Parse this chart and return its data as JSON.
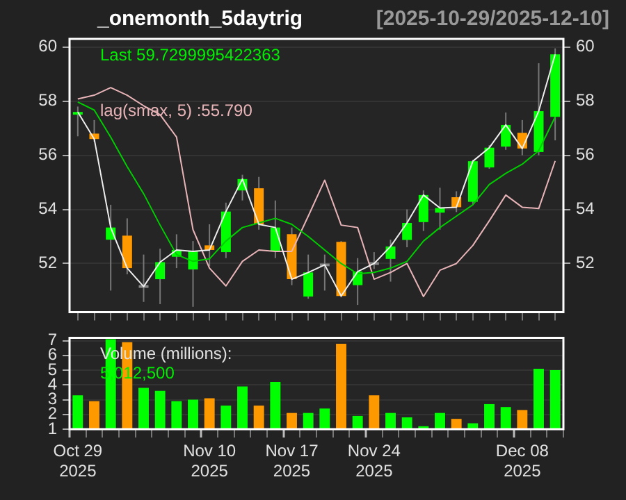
{
  "chart_data": [
    {
      "type": "candlestick",
      "title": "_onemonth_5daytrig",
      "subtitle": "[2025-10-29/2025-12-10]",
      "ohlc": [
        [
          57.5,
          57.8,
          56.7,
          57.6
        ],
        [
          56.8,
          57.3,
          56.5,
          56.6
        ],
        [
          52.88,
          54.17,
          51.0,
          53.33
        ],
        [
          53.03,
          53.67,
          51.6,
          51.83
        ],
        [
          51.1,
          52.33,
          50.58,
          51.2
        ],
        [
          51.42,
          52.55,
          50.5,
          52.05
        ],
        [
          52.25,
          53.08,
          51.83,
          52.5
        ],
        [
          51.78,
          52.83,
          50.4,
          52.45
        ],
        [
          52.67,
          53.45,
          51.9,
          52.5
        ],
        [
          52.42,
          54.25,
          52.2,
          53.92
        ],
        [
          54.7,
          55.28,
          54.33,
          55.12
        ],
        [
          54.78,
          55.2,
          53.25,
          53.45
        ],
        [
          52.45,
          54.33,
          52.2,
          53.33
        ],
        [
          53.08,
          53.33,
          51.2,
          51.42
        ],
        [
          50.78,
          52.33,
          50.7,
          51.67
        ],
        [
          51.9,
          52.33,
          51.0,
          52.0
        ],
        [
          52.8,
          52.83,
          50.75,
          50.8
        ],
        [
          51.2,
          52.2,
          50.47,
          51.7
        ],
        [
          51.95,
          52.42,
          51.8,
          52.05
        ],
        [
          52.17,
          52.88,
          51.33,
          52.63
        ],
        [
          52.87,
          54.0,
          52.6,
          53.5
        ],
        [
          53.53,
          54.7,
          53.2,
          54.53
        ],
        [
          53.88,
          54.8,
          53.25,
          54.05
        ],
        [
          54.45,
          54.67,
          53.9,
          54.08
        ],
        [
          54.28,
          55.83,
          54.2,
          55.78
        ],
        [
          55.55,
          56.37,
          55.5,
          56.28
        ],
        [
          56.32,
          57.58,
          56.2,
          57.12
        ],
        [
          56.83,
          57.3,
          56.0,
          56.25
        ],
        [
          56.12,
          59.4,
          56.0,
          57.63
        ],
        [
          57.42,
          59.95,
          56.55,
          59.73
        ]
      ],
      "colors": [
        "#00ff00",
        "#ff9900",
        "#00ff00",
        "#ff9900",
        "#888888",
        "#00ff00",
        "#00ff00",
        "#00ff00",
        "#ff9900",
        "#00ff00",
        "#00ff00",
        "#ff9900",
        "#00ff00",
        "#ff9900",
        "#00ff00",
        "#888888",
        "#ff9900",
        "#00ff00",
        "#888888",
        "#00ff00",
        "#00ff00",
        "#00ff00",
        "#00ff00",
        "#ff9900",
        "#00ff00",
        "#00ff00",
        "#00ff00",
        "#ff9900",
        "#00ff00",
        "#00ff00"
      ],
      "series": [
        {
          "type": "line",
          "color": "#eeeeee",
          "values": [
            57.6,
            56.6,
            53.33,
            51.83,
            51.15,
            52.05,
            52.5,
            52.45,
            52.5,
            53.92,
            55.12,
            53.45,
            53.33,
            51.42,
            51.67,
            51.95,
            50.8,
            51.7,
            52.0,
            52.63,
            53.5,
            54.53,
            54.05,
            54.08,
            55.78,
            56.28,
            57.12,
            56.25,
            57.63,
            59.73
          ]
        },
        {
          "type": "line",
          "color": "#00cc00",
          "values": [
            57.97,
            57.67,
            56.67,
            55.58,
            54.58,
            53.42,
            52.33,
            52.08,
            52.17,
            52.83,
            53.33,
            53.5,
            53.67,
            53.45,
            53.0,
            52.5,
            52.0,
            51.62,
            51.67,
            51.83,
            52.08,
            52.83,
            53.33,
            53.75,
            54.17,
            54.92,
            55.33,
            55.67,
            56.17,
            57.42
          ]
        },
        {
          "type": "line",
          "name": "lag(smax, 5) :55.790",
          "color": "#e8b4b8",
          "values": [
            58.08,
            58.22,
            58.5,
            58.22,
            57.83,
            57.5,
            56.67,
            53.25,
            51.83,
            51.17,
            52.08,
            52.5,
            52.45,
            52.45,
            53.75,
            55.08,
            53.42,
            53.33,
            51.42,
            51.67,
            52.0,
            50.78,
            51.75,
            52.0,
            52.67,
            53.58,
            54.53,
            54.08,
            54.03,
            55.79
          ]
        }
      ],
      "annotations": [
        "Last 59.7299995422363"
      ],
      "ylim": [
        50.2,
        60.3
      ],
      "yticks": [
        52,
        54,
        56,
        58,
        60
      ],
      "y2lim": [
        50.2,
        60.3
      ],
      "y2ticks": [
        52,
        54,
        56,
        58,
        60
      ],
      "grid": "y",
      "legend": false,
      "tick_labels": "y"
    },
    {
      "type": "bar",
      "categories": [
        "Oct 29 2025",
        null,
        null,
        null,
        null,
        null,
        null,
        null,
        "Nov 10 2025",
        null,
        null,
        null,
        null,
        "Nov 17 2025",
        null,
        null,
        null,
        null,
        "Nov 24 2025",
        null,
        null,
        null,
        null,
        null,
        null,
        null,
        null,
        "Dec 08 2025",
        null,
        null
      ],
      "values": [
        3.3,
        2.9,
        7.1,
        6.9,
        3.8,
        3.6,
        2.9,
        3.0,
        3.1,
        2.6,
        3.9,
        2.6,
        4.2,
        2.1,
        2.1,
        2.4,
        6.8,
        1.9,
        3.3,
        2.1,
        1.8,
        1.2,
        2.1,
        1.7,
        1.4,
        2.7,
        2.5,
        2.3,
        5.1,
        5.0
      ],
      "colors": [
        "#00ff00",
        "#ff9900",
        "#00ff00",
        "#ff9900",
        "#00ff00",
        "#00ff00",
        "#00ff00",
        "#00ff00",
        "#ff9900",
        "#00ff00",
        "#00ff00",
        "#ff9900",
        "#00ff00",
        "#ff9900",
        "#00ff00",
        "#00ff00",
        "#ff9900",
        "#00ff00",
        "#ff9900",
        "#00ff00",
        "#00ff00",
        "#00ff00",
        "#00ff00",
        "#ff9900",
        "#00ff00",
        "#00ff00",
        "#00ff00",
        "#ff9900",
        "#00ff00",
        "#00ff00"
      ],
      "annotations": [
        "Volume (millions):",
        "5,012,500"
      ],
      "ylim": [
        1,
        7.2
      ],
      "yticks": [
        1,
        2,
        3,
        4,
        5,
        6,
        7
      ],
      "grid": "y",
      "legend": false
    }
  ]
}
